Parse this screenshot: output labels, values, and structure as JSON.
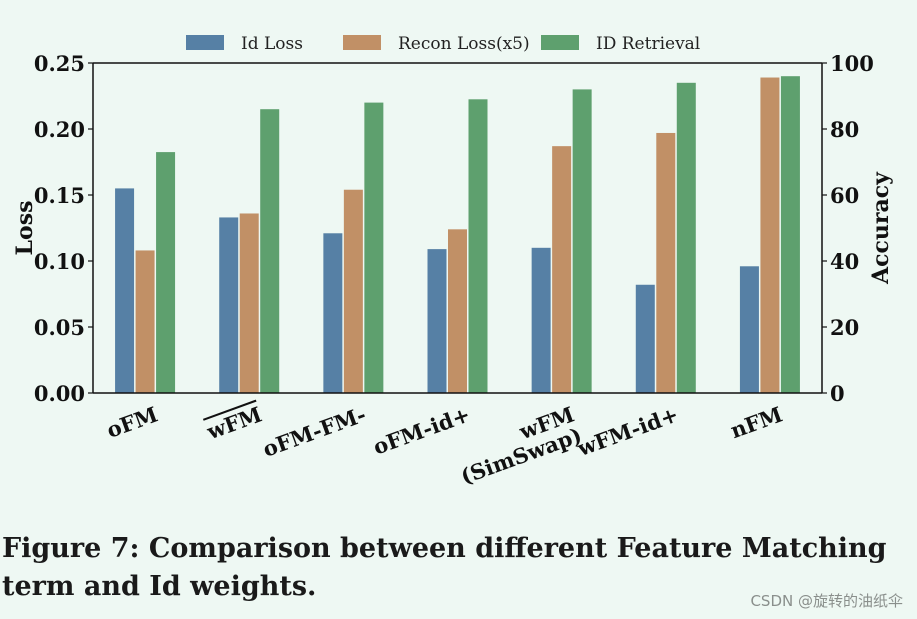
{
  "chart_data": {
    "type": "bar",
    "categories": [
      "oFM",
      "wFM",
      "oFM-FM-",
      "oFM-id+",
      "wFM\n(SimSwap)",
      "wFM-id+",
      "nFM"
    ],
    "overline_category_index": 1,
    "series": [
      {
        "name": "Id Loss",
        "axis": "left",
        "color": "#5680a5",
        "values": [
          0.155,
          0.133,
          0.121,
          0.109,
          0.11,
          0.082,
          0.096
        ]
      },
      {
        "name": "Recon Loss(x5)",
        "axis": "left",
        "color": "#c19066",
        "values": [
          0.108,
          0.136,
          0.154,
          0.124,
          0.187,
          0.197,
          0.239
        ]
      },
      {
        "name": "ID Retrieval",
        "axis": "right",
        "color": "#5ea06e",
        "values": [
          73,
          86,
          88,
          89,
          92,
          94,
          96
        ]
      }
    ],
    "ylabel_left": "Loss",
    "ylabel_right": "Accuracy",
    "ylim_left": [
      0,
      0.25
    ],
    "ylim_right": [
      0,
      100
    ],
    "yticks_left": [
      "0.00",
      "0.05",
      "0.10",
      "0.15",
      "0.20",
      "0.25"
    ],
    "yticks_right": [
      "0",
      "20",
      "40",
      "60",
      "80",
      "100"
    ],
    "legend_position": "top-center",
    "grid": false
  },
  "caption": "Figure 7: Comparison between different Feature Matching term and Id weights.",
  "watermark": "CSDN @旋转的油纸伞"
}
